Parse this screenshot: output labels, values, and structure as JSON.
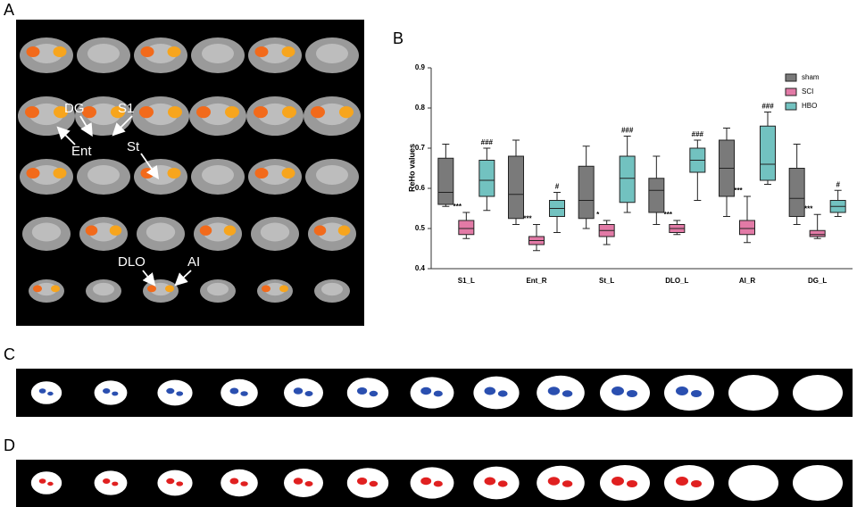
{
  "figure": {
    "panel_labels": [
      "A",
      "B",
      "C",
      "D"
    ],
    "brain_labels": [
      "DG",
      "S1",
      "Ent",
      "St",
      "DLO",
      "AI"
    ]
  },
  "chart_data": {
    "type": "box",
    "y_label": "ReHo values",
    "categories": [
      "S1_L",
      "Ent_R",
      "St_L",
      "DLO_L",
      "AI_R",
      "DG_L"
    ],
    "ylim": [
      0.4,
      0.9
    ],
    "yticks": [
      0.4,
      0.5,
      0.6,
      0.7,
      0.8,
      0.9
    ],
    "legend_position": "upper right",
    "series": [
      {
        "name": "sham",
        "color": "#7a7a7a",
        "values": [
          {
            "min": 0.555,
            "q1": 0.56,
            "median": 0.59,
            "q3": 0.675,
            "max": 0.71
          },
          {
            "min": 0.51,
            "q1": 0.525,
            "median": 0.585,
            "q3": 0.68,
            "max": 0.72
          },
          {
            "min": 0.5,
            "q1": 0.525,
            "median": 0.57,
            "q3": 0.655,
            "max": 0.705
          },
          {
            "min": 0.51,
            "q1": 0.54,
            "median": 0.595,
            "q3": 0.625,
            "max": 0.68
          },
          {
            "min": 0.53,
            "q1": 0.58,
            "median": 0.65,
            "q3": 0.72,
            "max": 0.75
          },
          {
            "min": 0.51,
            "q1": 0.53,
            "median": 0.575,
            "q3": 0.65,
            "max": 0.71
          }
        ]
      },
      {
        "name": "SCI",
        "color": "#e27aa6",
        "significance": [
          "***",
          "***",
          "*",
          "***",
          "***",
          "***"
        ],
        "values": [
          {
            "min": 0.475,
            "q1": 0.485,
            "median": 0.5,
            "q3": 0.52,
            "max": 0.54
          },
          {
            "min": 0.445,
            "q1": 0.46,
            "median": 0.47,
            "q3": 0.48,
            "max": 0.51
          },
          {
            "min": 0.46,
            "q1": 0.48,
            "median": 0.495,
            "q3": 0.51,
            "max": 0.52
          },
          {
            "min": 0.485,
            "q1": 0.49,
            "median": 0.5,
            "q3": 0.51,
            "max": 0.52
          },
          {
            "min": 0.465,
            "q1": 0.485,
            "median": 0.5,
            "q3": 0.52,
            "max": 0.58
          },
          {
            "min": 0.475,
            "q1": 0.48,
            "median": 0.485,
            "q3": 0.495,
            "max": 0.535
          }
        ]
      },
      {
        "name": "HBO",
        "color": "#72c2c0",
        "significance": [
          "###",
          "#",
          "###",
          "###",
          "###",
          "#"
        ],
        "values": [
          {
            "min": 0.545,
            "q1": 0.58,
            "median": 0.62,
            "q3": 0.67,
            "max": 0.7
          },
          {
            "min": 0.49,
            "q1": 0.53,
            "median": 0.55,
            "q3": 0.57,
            "max": 0.59
          },
          {
            "min": 0.54,
            "q1": 0.565,
            "median": 0.625,
            "q3": 0.68,
            "max": 0.73
          },
          {
            "min": 0.57,
            "q1": 0.64,
            "median": 0.67,
            "q3": 0.7,
            "max": 0.72
          },
          {
            "min": 0.61,
            "q1": 0.62,
            "median": 0.66,
            "q3": 0.755,
            "max": 0.79
          },
          {
            "min": 0.53,
            "q1": 0.54,
            "median": 0.555,
            "q3": 0.57,
            "max": 0.595
          }
        ]
      }
    ]
  }
}
